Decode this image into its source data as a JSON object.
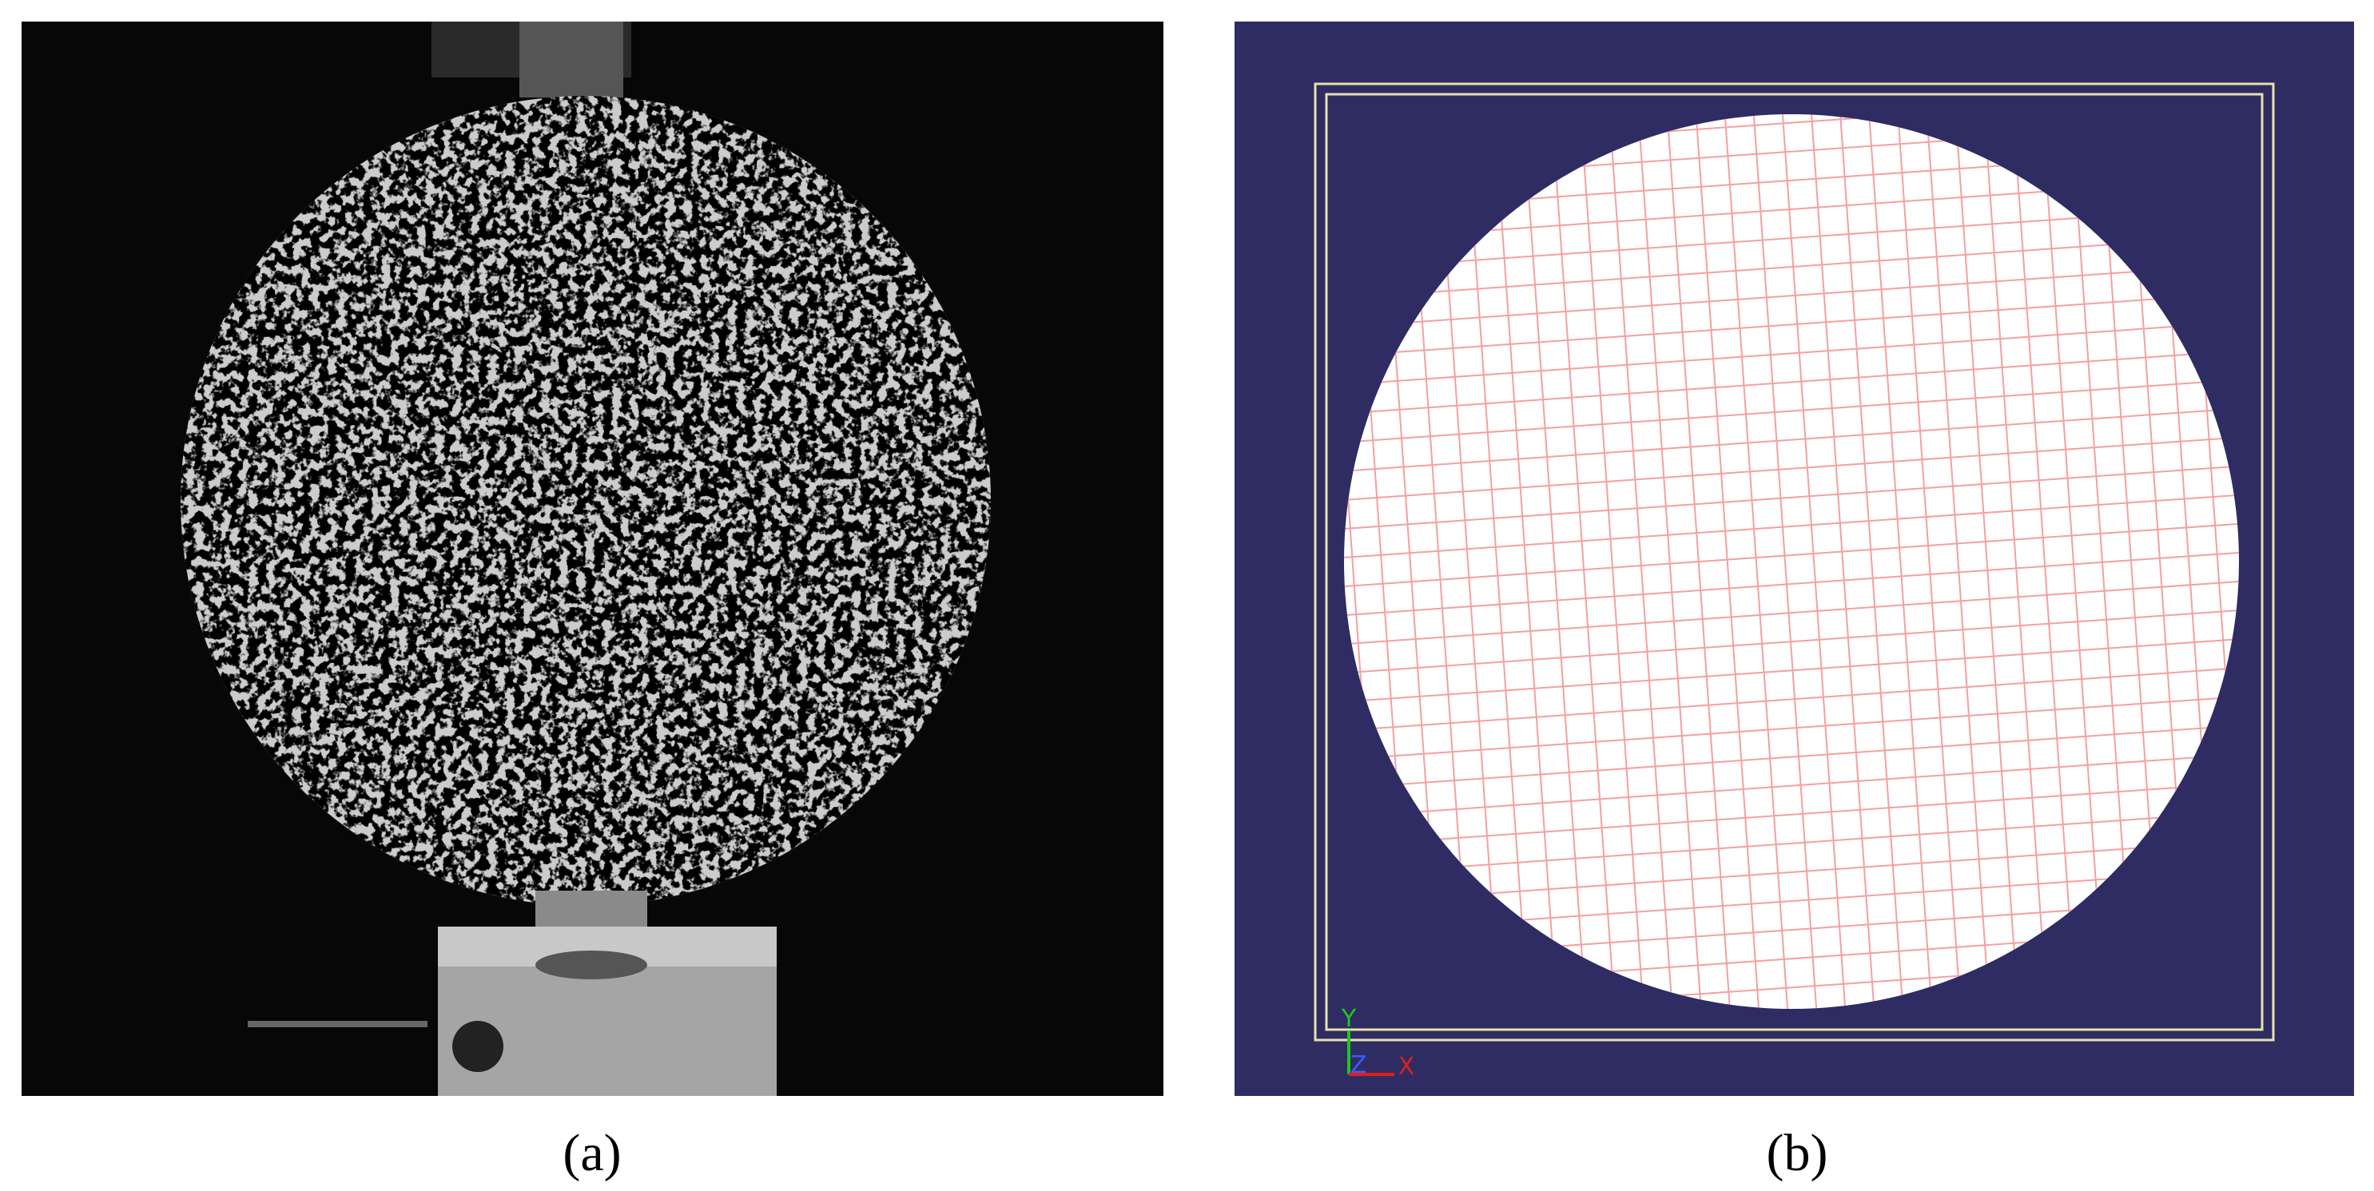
{
  "panels": [
    {
      "label": "(a)"
    },
    {
      "label": "(b)",
      "axes": {
        "y": "Y",
        "z": "Z",
        "x": "X"
      }
    }
  ]
}
